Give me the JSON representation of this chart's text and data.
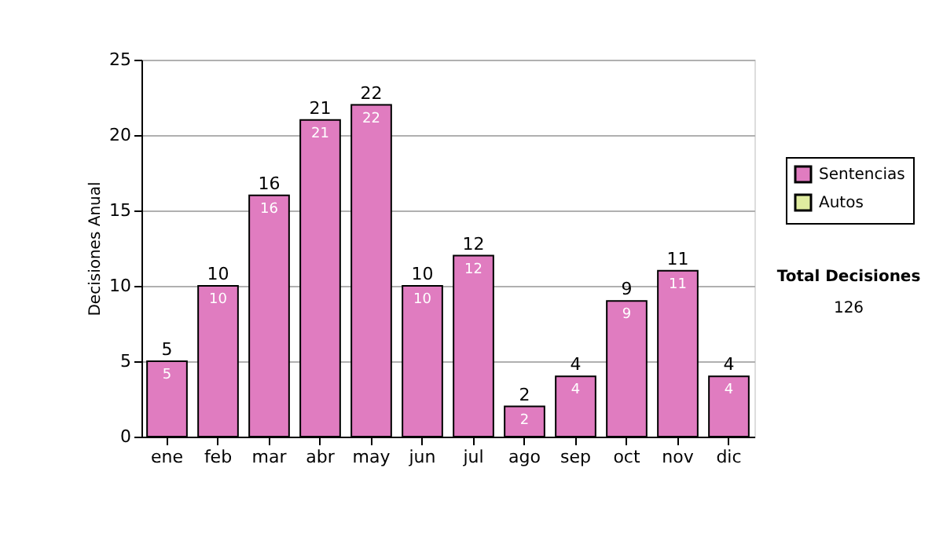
{
  "chart_data": {
    "type": "bar",
    "ylabel": "Decisiones Anual",
    "categories": [
      "ene",
      "feb",
      "mar",
      "abr",
      "may",
      "jun",
      "jul",
      "ago",
      "sep",
      "oct",
      "nov",
      "dic"
    ],
    "series": [
      {
        "name": "Sentencias",
        "color": "#e07cc0",
        "values": [
          5,
          10,
          16,
          21,
          22,
          10,
          12,
          2,
          4,
          9,
          11,
          4
        ],
        "value_labels": [
          "5",
          "10",
          "16",
          "21",
          "22",
          "10",
          "12",
          "2",
          "4",
          "9",
          "11",
          "4"
        ]
      },
      {
        "name": "Autos",
        "color": "#e0eca0",
        "values": [
          0,
          0,
          0,
          0,
          0,
          0,
          0,
          0,
          0,
          0,
          0,
          0
        ]
      }
    ],
    "stacked": true,
    "totals": [
      "5",
      "10",
      "16",
      "21",
      "22",
      "10",
      "12",
      "2",
      "4",
      "9",
      "11",
      "4"
    ],
    "ylim": [
      0,
      25
    ],
    "yticks": [
      0,
      5,
      10,
      15,
      20,
      25
    ],
    "grid": "y",
    "legend": "right",
    "annotations": [
      "Total Decisiones",
      "126"
    ]
  }
}
